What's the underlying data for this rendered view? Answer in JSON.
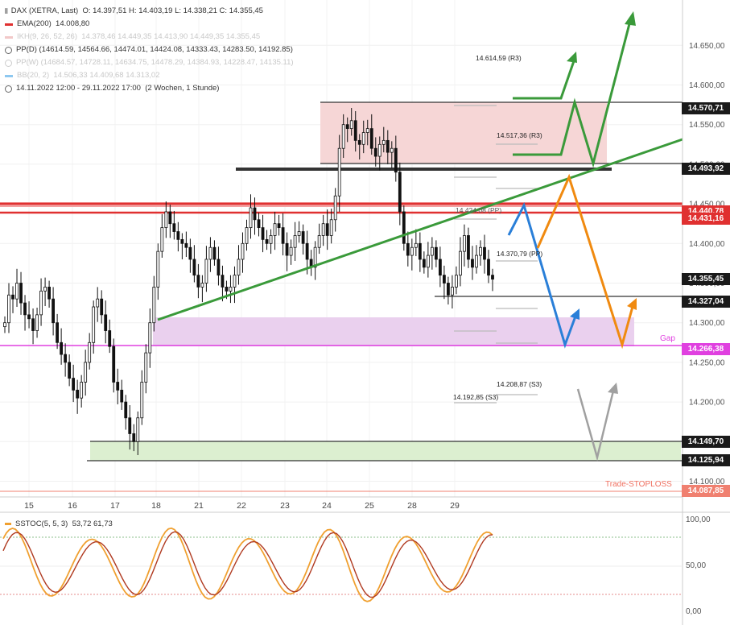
{
  "legend": {
    "instrument": "DAX (XETRA, Last)",
    "ohlc": "O: 14.397,51  H: 14.403,19  L: 14.338,21  C: 14.355,45",
    "ema_label": "EMA(200)",
    "ema_value": "14.008,80",
    "ema_color": "#e03030",
    "ikh_label": "IKH(9, 26, 52, 26)",
    "ikh_values": "14.378,46  14.449,35  14.413,90  14.449,35  14.355,45",
    "ppd_label": "PP(D)",
    "ppd_values": "(14614.59, 14564.66, 14474.01, 14424.08, 14333.43, 14283.50, 14192.85)",
    "ppw_label": "PP(W)",
    "ppw_values": "(14684.57, 14728.11, 14634.75, 14478.29, 14384.93, 14228.47, 14135.11)",
    "bb_label": "BB(20, 2)",
    "bb_values": "14.506,33  14.409,68  14.313,02",
    "bb_color": "#8ec8f0",
    "range": "14.11.2022 12:00 - 29.11.2022 17:00",
    "range_note": "(2 Wochen, 1 Stunde)"
  },
  "price_tags": [
    {
      "value": 14570.71,
      "label": "14.570,71",
      "color": "#1a1a1a"
    },
    {
      "value": 14493.92,
      "label": "14.493,92",
      "color": "#1a1a1a"
    },
    {
      "value": 14440.78,
      "label": "14.440,78",
      "color": "#e03030"
    },
    {
      "value": 14431.16,
      "label": "14.431,16",
      "color": "#e03030"
    },
    {
      "value": 14355.45,
      "label": "14.355,45",
      "color": "#1a1a1a"
    },
    {
      "value": 14327.04,
      "label": "14.327,04",
      "color": "#1a1a1a"
    },
    {
      "value": 14266.38,
      "label": "14.266,38",
      "color": "#e040e0"
    },
    {
      "value": 14149.7,
      "label": "14.149,70",
      "color": "#1a1a1a"
    },
    {
      "value": 14125.94,
      "label": "14.125,94",
      "color": "#1a1a1a"
    },
    {
      "value": 14087.85,
      "label": "14.087,85",
      "color": "#f08070"
    }
  ],
  "annotations": {
    "gap": "Gap",
    "stoploss": "Trade-STOPLOSS",
    "r3_upper": "14.614,59 (R3)",
    "r3_lower": "14.517,36 (R3)",
    "pp_upper": "14.424,08 (PP)",
    "pp_lower": "14.370,79 (PP)",
    "s3_upper": "14.208,87 (S3)",
    "s3_lower": "14.192,85 (S3)"
  },
  "oscillator": {
    "label": "SSTOC(5, 5, 3)",
    "values": "53,72  61,73",
    "ticks": [
      "100,00",
      "50,00",
      "0,00"
    ]
  },
  "chart_data": {
    "type": "candlestick",
    "y_axis_ticks": [
      14100,
      14150,
      14200,
      14250,
      14300,
      14350,
      14400,
      14450,
      14500,
      14550,
      14600,
      14650
    ],
    "y_axis_labels": [
      "14.100,00",
      "14.150,00",
      "14.200,00",
      "14.250,00",
      "14.300,00",
      "14.350,00",
      "14.400,00",
      "14.450,00",
      "14.500,00",
      "14.550,00",
      "14.600,00",
      "14.650,00"
    ],
    "x_axis_labels": [
      "15",
      "16",
      "17",
      "18",
      "21",
      "22",
      "23",
      "24",
      "25",
      "28",
      "29"
    ],
    "ylim": [
      14070,
      14700
    ],
    "close_series": [
      14300,
      14335,
      14330,
      14350,
      14325,
      14310,
      14305,
      14290,
      14310,
      14340,
      14345,
      14330,
      14300,
      14275,
      14260,
      14250,
      14230,
      14215,
      14205,
      14225,
      14250,
      14275,
      14320,
      14330,
      14310,
      14290,
      14270,
      14225,
      14215,
      14200,
      14180,
      14160,
      14150,
      14180,
      14225,
      14262,
      14300,
      14345,
      14390,
      14420,
      14440,
      14425,
      14415,
      14405,
      14400,
      14395,
      14380,
      14360,
      14345,
      14350,
      14380,
      14395,
      14380,
      14360,
      14345,
      14340,
      14345,
      14360,
      14380,
      14400,
      14420,
      14445,
      14430,
      14420,
      14405,
      14400,
      14410,
      14425,
      14420,
      14400,
      14385,
      14395,
      14410,
      14415,
      14400,
      14380,
      14370,
      14395,
      14410,
      14425,
      14410,
      14430,
      14460,
      14520,
      14550,
      14545,
      14555,
      14530,
      14525,
      14540,
      14545,
      14520,
      14510,
      14525,
      14530,
      14515,
      14520,
      14490,
      14440,
      14400,
      14385,
      14395,
      14400,
      14380,
      14370,
      14385,
      14395,
      14380,
      14360,
      14350,
      14335,
      14345,
      14360,
      14390,
      14410,
      14380,
      14370,
      14385,
      14395,
      14380,
      14360,
      14355
    ]
  }
}
